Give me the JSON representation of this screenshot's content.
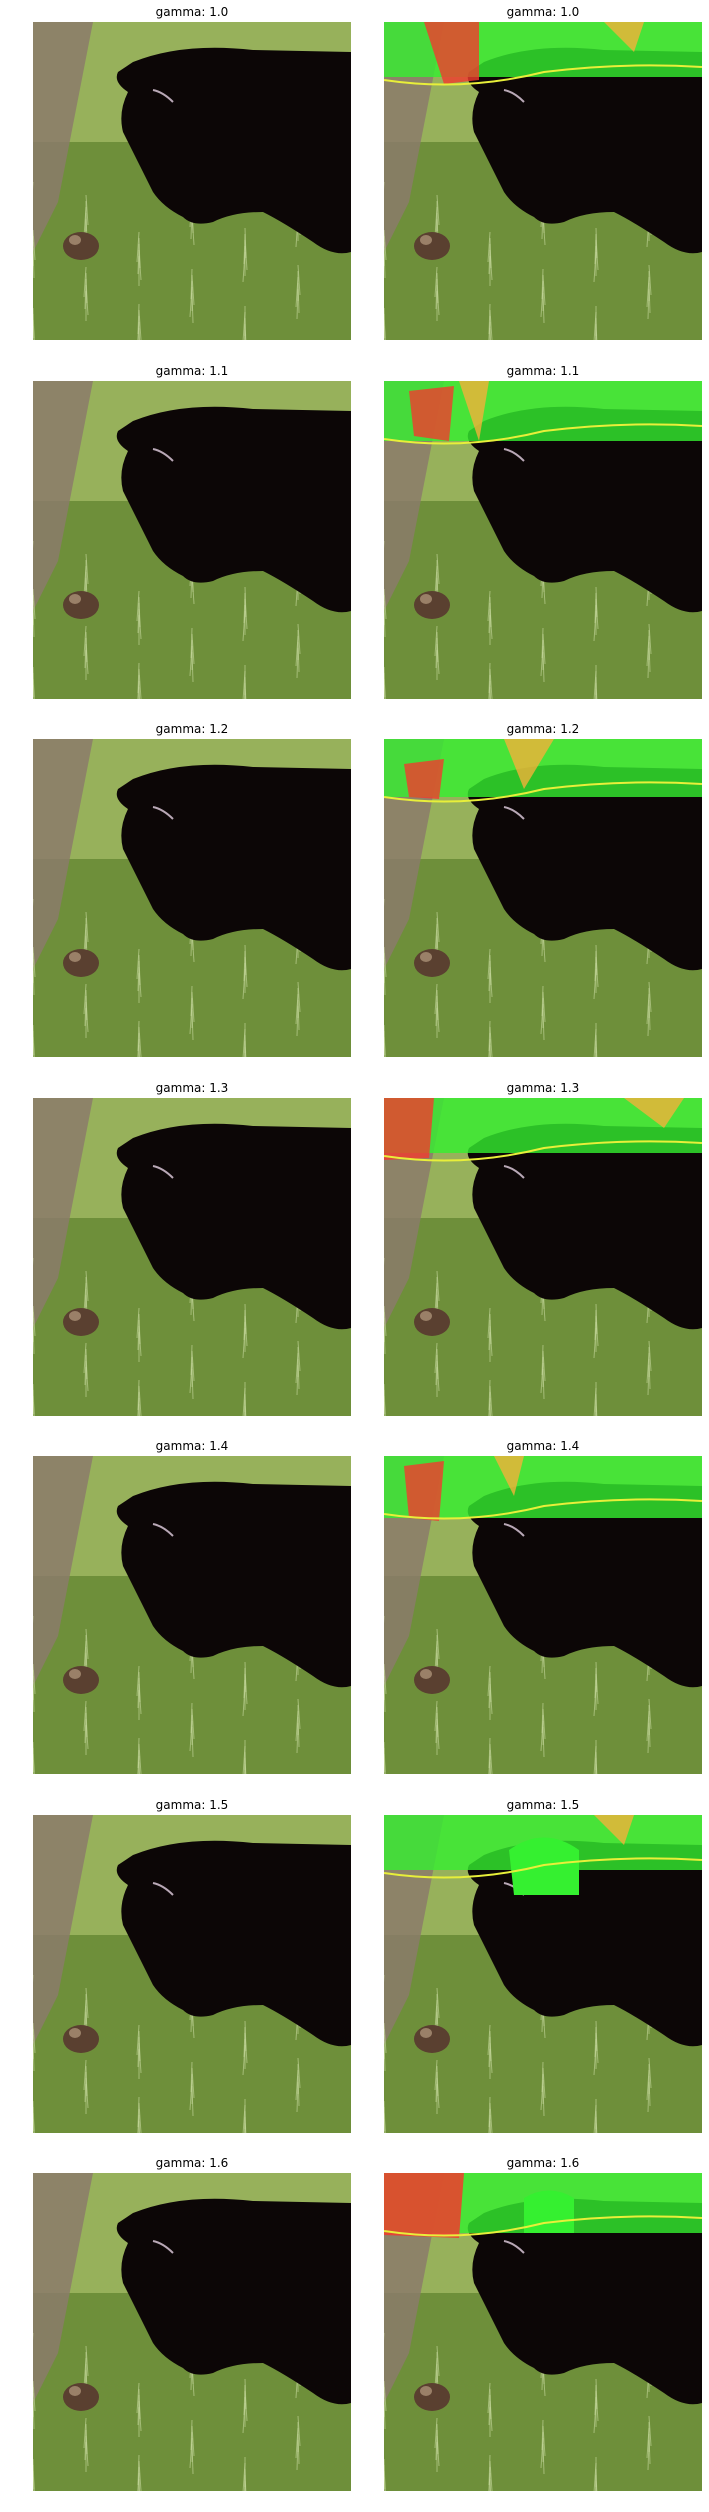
{
  "figure": {
    "rows": [
      {
        "gamma": "gamma: 1.0",
        "left_title": "gamma: 1.0",
        "right_title": "gamma: 1.0"
      },
      {
        "gamma": "gamma: 1.1",
        "left_title": "gamma: 1.1",
        "right_title": "gamma: 1.1"
      },
      {
        "gamma": "gamma: 1.2",
        "left_title": "gamma: 1.2",
        "right_title": "gamma: 1.2"
      },
      {
        "gamma": "gamma: 1.3",
        "left_title": "gamma: 1.3",
        "right_title": "gamma: 1.3"
      },
      {
        "gamma": "gamma: 1.4",
        "left_title": "gamma: 1.4",
        "right_title": "gamma: 1.4"
      },
      {
        "gamma": "gamma: 1.5",
        "left_title": "gamma: 1.5",
        "right_title": "gamma: 1.5"
      },
      {
        "gamma": "gamma: 1.6",
        "left_title": "gamma: 1.6",
        "right_title": "gamma: 1.6"
      }
    ]
  },
  "colors": {
    "grass": "#6e8f3a",
    "grass_light": "#a8bf6a",
    "fence": "#8b7b6b",
    "animal": "#0c0606",
    "overlay_green": "#35f030",
    "overlay_red": "#f23a2e",
    "overlay_orange": "#f4b03a",
    "overlay_yellow": "#e8ef3a"
  }
}
